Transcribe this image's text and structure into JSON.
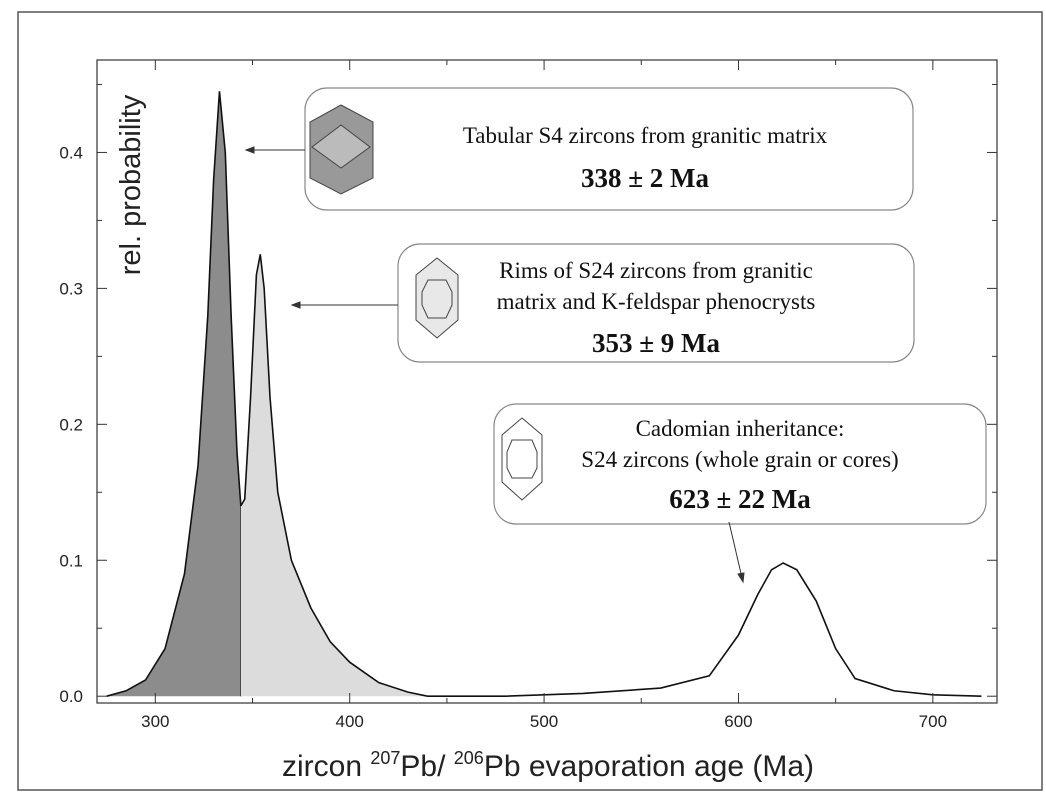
{
  "chart_data": {
    "type": "area",
    "y_label": "rel. probability",
    "x_label": [
      "zircon ",
      "207",
      "Pb/ ",
      "206",
      "Pb evaporation age (Ma)"
    ],
    "xlim": [
      270,
      733
    ],
    "ylim": [
      -0.005,
      0.468
    ],
    "xticks": [
      300,
      400,
      500,
      600,
      700
    ],
    "yticks": [
      {
        "value": 0,
        "label": "0.0"
      },
      0.1,
      0.2,
      0.3,
      0.4
    ],
    "xminor": [
      350,
      450,
      550,
      650
    ],
    "yminor": [
      0.05,
      0.15,
      0.25,
      0.35,
      0.45
    ],
    "series": [
      {
        "color": "#8c8c8c",
        "x": [
          275,
          285,
          295,
          305,
          315,
          322,
          327,
          330,
          333,
          336,
          339,
          342,
          344
        ],
        "values": [
          0,
          0.004,
          0.012,
          0.035,
          0.09,
          0.17,
          0.28,
          0.38,
          0.445,
          0.4,
          0.28,
          0.18,
          0.14
        ]
      },
      {
        "color": "#dcdcdc",
        "x": [
          344,
          346,
          349,
          352,
          354,
          356,
          359,
          363,
          370,
          380,
          390,
          400,
          415,
          430,
          440
        ],
        "values": [
          0.14,
          0.145,
          0.22,
          0.31,
          0.325,
          0.3,
          0.22,
          0.15,
          0.1,
          0.065,
          0.04,
          0.025,
          0.01,
          0.003,
          0
        ]
      },
      {
        "color": "none",
        "x": [
          440,
          480,
          520,
          560,
          585,
          600,
          610,
          617,
          623,
          630,
          640,
          650,
          660,
          680,
          700,
          725
        ],
        "values": [
          0,
          0,
          0.002,
          0.006,
          0.015,
          0.045,
          0.075,
          0.093,
          0.098,
          0.093,
          0.07,
          0.035,
          0.013,
          0.004,
          0.001,
          0
        ]
      }
    ],
    "annotations": [
      {
        "lines": [
          "Tabular S4 zircons from granitic matrix"
        ],
        "age": "338 ± 2 Ma"
      },
      {
        "lines": [
          "Rims of S24 zircons from granitic",
          "matrix and K-feldspar phenocrysts"
        ],
        "age": "353 ± 9 Ma"
      },
      {
        "lines": [
          "Cadomian inheritance:",
          "S24 zircons (whole grain or cores)"
        ],
        "age": "623 ± 22 Ma"
      }
    ]
  }
}
